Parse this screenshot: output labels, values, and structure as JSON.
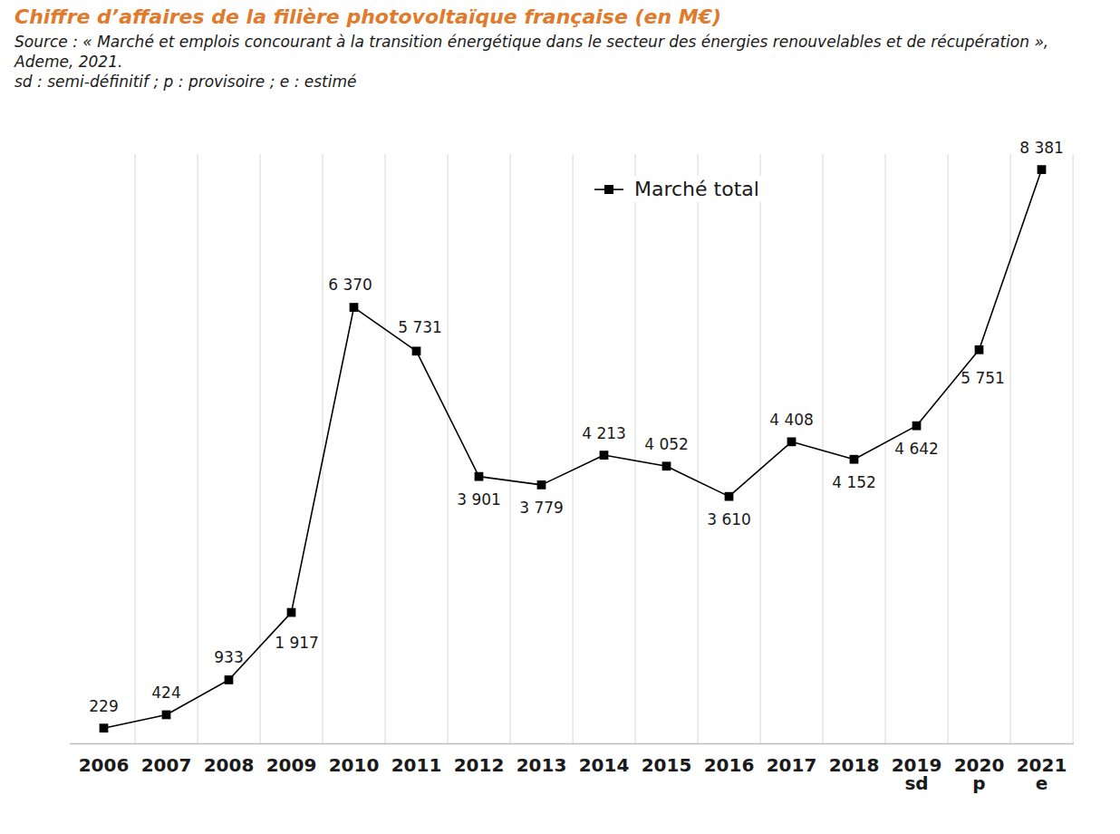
{
  "chart_data": {
    "type": "line",
    "title": "Chiffre d’affaires de la filière photovoltaïque française (en M€)",
    "subtitle": [
      "Source : « Marché et emplois concourant à la transition énergétique dans le secteur des énergies renouvelables et de récupération », Ademe, 2021.",
      "sd : semi-définitif ; p : provisoire ; e : estimé"
    ],
    "categories": [
      "2006",
      "2007",
      "2008",
      "2009",
      "2010",
      "2011",
      "2012",
      "2013",
      "2014",
      "2015",
      "2016",
      "2017",
      "2018",
      "2019\nsd",
      "2020\np",
      "2021\ne"
    ],
    "series": [
      {
        "name": "Marché total",
        "color": "#000000",
        "marker": "square",
        "line_style": "solid",
        "values": [
          229,
          424,
          933,
          1917,
          6370,
          5731,
          3901,
          3779,
          4213,
          4052,
          3610,
          4408,
          4152,
          4642,
          5751,
          8381
        ],
        "value_labels": [
          "229",
          "424",
          "933",
          "1 917",
          "6 370",
          "5 731",
          "3 901",
          "3 779",
          "4 213",
          "4 052",
          "3 610",
          "4 408",
          "4 152",
          "4 642",
          "5 751",
          "8 381"
        ]
      }
    ],
    "ylim": [
      0,
      8600
    ],
    "yticks": [],
    "grid": true,
    "legend": "top",
    "data_labels": true,
    "tick_labels": "x"
  }
}
